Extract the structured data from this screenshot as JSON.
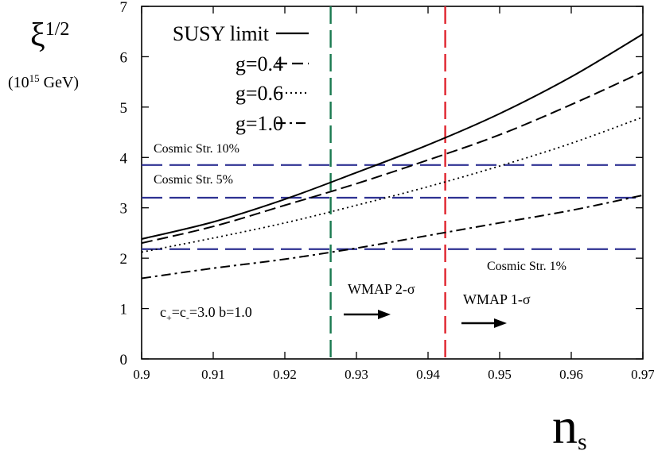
{
  "chart_data": {
    "type": "line",
    "title": "",
    "ylabel": "ξ",
    "ylabel_exp": "1/2",
    "ylabel_unit_prefix": "(10",
    "ylabel_unit_exp": "15",
    "ylabel_unit_suffix": " GeV)",
    "xlabel": "n",
    "xlabel_sub": "s",
    "xlim": [
      0.9,
      0.97
    ],
    "ylim": [
      0,
      7
    ],
    "xticks": [
      "0.9",
      "0.91",
      "0.92",
      "0.93",
      "0.94",
      "0.95",
      "0.96",
      "0.97"
    ],
    "xtick_values": [
      0.9,
      0.91,
      0.92,
      0.93,
      0.94,
      0.95,
      0.96,
      0.97
    ],
    "yticks": [
      "0",
      "1",
      "2",
      "3",
      "4",
      "5",
      "6",
      "7"
    ],
    "ytick_values": [
      0,
      1,
      2,
      3,
      4,
      5,
      6,
      7
    ],
    "grid": false,
    "legend_position": "top-left",
    "series": [
      {
        "name": "SUSY limit",
        "style": "solid",
        "x": [
          0.9,
          0.91,
          0.92,
          0.93,
          0.94,
          0.95,
          0.96,
          0.97
        ],
        "y": [
          2.38,
          2.72,
          3.17,
          3.7,
          4.25,
          4.87,
          5.6,
          6.45
        ]
      },
      {
        "name": "g=0.4",
        "style": "dashed",
        "x": [
          0.9,
          0.91,
          0.92,
          0.93,
          0.94,
          0.95,
          0.96,
          0.97
        ],
        "y": [
          2.3,
          2.63,
          3.05,
          3.48,
          3.95,
          4.45,
          5.05,
          5.7
        ]
      },
      {
        "name": "g=0.6",
        "style": "dotted",
        "x": [
          0.9,
          0.91,
          0.92,
          0.93,
          0.94,
          0.95,
          0.96,
          0.97
        ],
        "y": [
          2.12,
          2.4,
          2.7,
          3.05,
          3.42,
          3.83,
          4.28,
          4.8
        ]
      },
      {
        "name": "g=1.0",
        "style": "dashdot",
        "x": [
          0.9,
          0.91,
          0.92,
          0.93,
          0.94,
          0.95,
          0.96,
          0.97
        ],
        "y": [
          1.6,
          1.8,
          1.98,
          2.2,
          2.45,
          2.7,
          2.95,
          3.25
        ]
      }
    ],
    "hlines": [
      {
        "y": 3.85,
        "label": "Cosmic Str. 10%"
      },
      {
        "y": 3.2,
        "label": "Cosmic Str.  5%"
      },
      {
        "y": 2.18,
        "label": "Cosmic Str. 1%"
      }
    ],
    "vlines": [
      {
        "x": 0.9264,
        "color": "#1a7a50",
        "label": "WMAP 2-σ"
      },
      {
        "x": 0.9424,
        "color": "#e0242e",
        "label": "WMAP 1-σ"
      }
    ],
    "params_text_parts": [
      "c",
      "+",
      "=c",
      "-",
      "=3.0    b=1.0"
    ],
    "colors": {
      "hline": "#2e3192",
      "axis": "#000000"
    }
  }
}
